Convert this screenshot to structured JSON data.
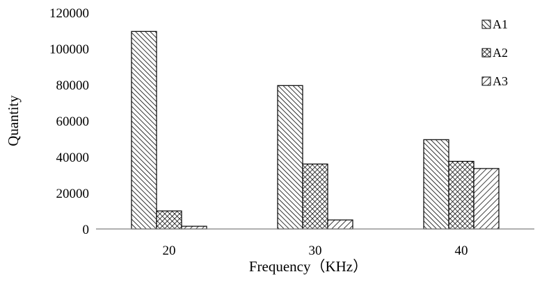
{
  "chart_data": {
    "type": "bar",
    "categories": [
      "20",
      "30",
      "40"
    ],
    "series": [
      {
        "name": "A1",
        "values": [
          109500,
          79500,
          49500
        ],
        "pattern": "diag-fine"
      },
      {
        "name": "A2",
        "values": [
          10000,
          36000,
          37500
        ],
        "pattern": "crosshatch"
      },
      {
        "name": "A3",
        "values": [
          1500,
          5000,
          33500
        ],
        "pattern": "diag-back"
      }
    ],
    "title": "",
    "xlabel": "Frequency（KHz）",
    "ylabel": "Quantity",
    "ylim": [
      0,
      120000
    ],
    "yticks": [
      0,
      20000,
      40000,
      60000,
      80000,
      100000,
      120000
    ],
    "grid": false,
    "legend": "top-right",
    "colors": {
      "bar_stroke": "#000000",
      "hatch": "#000000",
      "axis": "#7f7f7f"
    }
  }
}
